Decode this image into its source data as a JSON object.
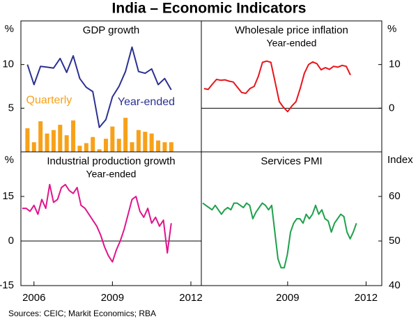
{
  "title": "India – Economic Indicators",
  "source": "Sources: CEIC; Markit Economics; RBA",
  "chart_data": [
    {
      "type": "line",
      "title": "GDP growth",
      "unit": "%",
      "axis_side": "left",
      "x": [
        2005.75,
        2006,
        2006.25,
        2006.5,
        2006.75,
        2007,
        2007.25,
        2007.5,
        2007.75,
        2008,
        2008.25,
        2008.5,
        2008.75,
        2009,
        2009.25,
        2009.5,
        2009.75,
        2010,
        2010.25,
        2010.5,
        2010.75,
        2011,
        2011.25
      ],
      "xlim": [
        2005.5,
        2012.4
      ],
      "ylim": [
        0,
        15
      ],
      "yticks": [
        5,
        10
      ],
      "zero_line": false,
      "annotations": [
        {
          "text": "Quarterly",
          "color": "#f7a11a",
          "x": 2005.7,
          "y": 5.9
        },
        {
          "text": "Year-ended",
          "color": "#2b3191",
          "x": 2009.2,
          "y": 5.7
        }
      ],
      "series": [
        {
          "name": "Quarterly",
          "type": "bar",
          "color": "#f7a11a",
          "values": [
            2.7,
            1.1,
            3.5,
            2.1,
            2.5,
            3.1,
            1.9,
            3.6,
            0.7,
            1.0,
            1.7,
            0.3,
            1.5,
            2.9,
            1.5,
            3.9,
            1.1,
            2.5,
            2.3,
            2.1,
            1.3,
            1.1,
            1.1
          ]
        },
        {
          "name": "Year-ended",
          "type": "line",
          "color": "#2b3191",
          "values": [
            10,
            7.7,
            9.8,
            9.7,
            9.6,
            10.7,
            9.1,
            11,
            8.4,
            7.4,
            6.9,
            2.8,
            3.7,
            6.3,
            7.5,
            9.2,
            12,
            9.2,
            9,
            9.5,
            7.7,
            8.4,
            7.1
          ]
        }
      ]
    },
    {
      "type": "line",
      "title": "Wholesale price inflation",
      "subtitle": "Year-ended",
      "unit": "%",
      "axis_side": "right",
      "x": [
        2005.8,
        2005.96,
        2006.12,
        2006.28,
        2006.44,
        2006.6,
        2006.76,
        2006.92,
        2007.08,
        2007.24,
        2007.4,
        2007.56,
        2007.72,
        2007.88,
        2008.04,
        2008.2,
        2008.36,
        2008.52,
        2008.68,
        2008.84,
        2009.0,
        2009.16,
        2009.32,
        2009.48,
        2009.64,
        2009.8,
        2009.96,
        2010.12,
        2010.28,
        2010.44,
        2010.6,
        2010.76,
        2010.92,
        2011.08,
        2011.24,
        2011.4
      ],
      "xlim": [
        2005.7,
        2012.6
      ],
      "ylim": [
        -10,
        20
      ],
      "yticks": [
        0,
        10
      ],
      "zero_line": true,
      "series": [
        {
          "type": "line",
          "color": "#e8141b",
          "values": [
            4.5,
            4.3,
            5.5,
            6.6,
            6.4,
            6.5,
            6.2,
            6.0,
            4.8,
            3.6,
            3.4,
            4.5,
            5.0,
            7.3,
            10.5,
            10.8,
            10.5,
            6.0,
            1.5,
            0.2,
            -0.8,
            0.5,
            1.5,
            4.5,
            8.0,
            10.0,
            10.6,
            10.2,
            8.8,
            9.3,
            8.9,
            9.6,
            9.4,
            9.8,
            9.6,
            7.6
          ]
        }
      ]
    },
    {
      "type": "line",
      "title": "Industrial production growth",
      "subtitle": "Year-ended",
      "unit": "%",
      "axis_side": "left",
      "x": [
        2005.55,
        2005.7,
        2005.85,
        2006,
        2006.15,
        2006.3,
        2006.45,
        2006.6,
        2006.75,
        2006.9,
        2007.05,
        2007.2,
        2007.35,
        2007.5,
        2007.65,
        2007.8,
        2007.95,
        2008.1,
        2008.25,
        2008.4,
        2008.55,
        2008.7,
        2008.85,
        2009,
        2009.15,
        2009.3,
        2009.45,
        2009.6,
        2009.75,
        2009.9,
        2010.05,
        2010.2,
        2010.35,
        2010.5,
        2010.65,
        2010.8,
        2010.95,
        2011.1,
        2011.25
      ],
      "xlim": [
        2005.5,
        2012.4
      ],
      "ylim": [
        -15,
        30
      ],
      "yticks": [
        -15,
        0,
        15
      ],
      "xticks": [
        2006,
        2009,
        2012
      ],
      "zero_line": true,
      "series": [
        {
          "type": "line",
          "color": "#e0148c",
          "values": [
            11,
            11,
            10,
            12,
            9,
            14,
            11,
            19,
            13,
            14,
            18,
            19,
            17,
            16,
            18,
            12,
            11,
            9,
            7,
            5,
            2,
            -2,
            -5,
            -7,
            -3,
            0,
            4,
            9,
            14,
            15,
            10,
            8,
            11,
            6,
            8,
            5,
            7,
            -4,
            6
          ]
        }
      ]
    },
    {
      "type": "line",
      "title": "Services PMI",
      "unit": "Index",
      "axis_side": "right",
      "x": [
        2005.75,
        2005.87,
        2005.99,
        2006.11,
        2006.23,
        2006.35,
        2006.47,
        2006.59,
        2006.71,
        2006.83,
        2006.95,
        2007.07,
        2007.19,
        2007.31,
        2007.43,
        2007.55,
        2007.67,
        2007.79,
        2007.91,
        2008.03,
        2008.15,
        2008.27,
        2008.39,
        2008.51,
        2008.63,
        2008.75,
        2008.87,
        2008.99,
        2009.11,
        2009.23,
        2009.35,
        2009.47,
        2009.59,
        2009.71,
        2009.83,
        2009.95,
        2010.07,
        2010.19,
        2010.31,
        2010.43,
        2010.55,
        2010.67,
        2010.79,
        2010.91,
        2011.03,
        2011.15,
        2011.27,
        2011.39,
        2011.51,
        2011.63
      ],
      "xlim": [
        2005.7,
        2012.6
      ],
      "ylim": [
        40,
        70
      ],
      "yticks": [
        40,
        50,
        60
      ],
      "xticks": [
        2009,
        2012
      ],
      "zero_line": false,
      "series": [
        {
          "type": "line",
          "color": "#1ea04b",
          "values": [
            58.5,
            58,
            57.5,
            57,
            58,
            57,
            56,
            57,
            57.5,
            57,
            58.5,
            58.5,
            58,
            57.5,
            58.5,
            58,
            55,
            56.5,
            57.5,
            58.5,
            58,
            57,
            58,
            52,
            46,
            44,
            44,
            47,
            52,
            54,
            55,
            55,
            54,
            56,
            55,
            56,
            58,
            56,
            57,
            55,
            54.5,
            52,
            54,
            55,
            56,
            55.5,
            52,
            50.5,
            52,
            54
          ]
        }
      ]
    }
  ]
}
